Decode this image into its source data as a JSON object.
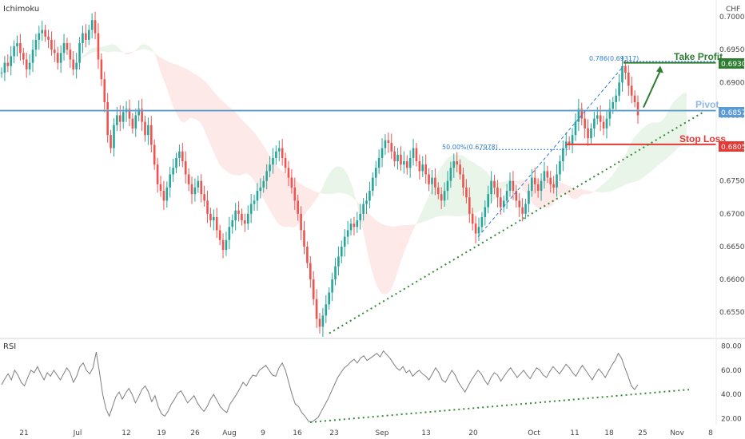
{
  "chart_data": {
    "type": "candlestick",
    "indicator_label": "Ichimoku",
    "currency_label": "CHF",
    "y_ticks": [
      "0.70000",
      "0.69500",
      "0.69000",
      "0.68500",
      "0.68000",
      "0.67500",
      "0.67000",
      "0.66500",
      "0.66000",
      "0.65500"
    ],
    "ylim": [
      0.6515,
      0.7022
    ],
    "x_ticks": [
      "21",
      "Jul",
      "12",
      "19",
      "26",
      "Aug",
      "9",
      "16",
      "23",
      "Sep",
      "13",
      "20",
      "Oct",
      "11",
      "18",
      "25",
      "Nov",
      "8"
    ],
    "levels": {
      "take_profit": {
        "label": "Take Profit",
        "value": "0.69300",
        "color": "#2e7d32"
      },
      "pivot": {
        "label": "Pivot",
        "value": "0.68570",
        "color": "#5b9bd5"
      },
      "stop_loss": {
        "label": "Stop Loss",
        "value": "0.68058",
        "color": "#e53935"
      }
    },
    "fib_labels": {
      "f786": "0.786(0.69317)",
      "f500": "50.00%(0.67978)"
    },
    "price_path": [
      0.6915,
      0.693,
      0.6925,
      0.694,
      0.6955,
      0.696,
      0.6945,
      0.6935,
      0.692,
      0.693,
      0.695,
      0.6965,
      0.6975,
      0.698,
      0.697,
      0.6965,
      0.695,
      0.6945,
      0.693,
      0.6945,
      0.696,
      0.695,
      0.6935,
      0.692,
      0.693,
      0.696,
      0.6975,
      0.6965,
      0.698,
      0.6995,
      0.6975,
      0.6935,
      0.6905,
      0.687,
      0.682,
      0.68,
      0.6835,
      0.685,
      0.684,
      0.6855,
      0.686,
      0.6845,
      0.683,
      0.685,
      0.686,
      0.684,
      0.682,
      0.6835,
      0.6805,
      0.6775,
      0.6745,
      0.6735,
      0.672,
      0.674,
      0.676,
      0.677,
      0.6785,
      0.6795,
      0.678,
      0.676,
      0.6745,
      0.673,
      0.674,
      0.675,
      0.673,
      0.672,
      0.67,
      0.669,
      0.6695,
      0.6675,
      0.666,
      0.6645,
      0.666,
      0.668,
      0.669,
      0.6705,
      0.67,
      0.669,
      0.6685,
      0.67,
      0.6715,
      0.672,
      0.6735,
      0.674,
      0.675,
      0.6765,
      0.6775,
      0.6785,
      0.6795,
      0.68,
      0.6785,
      0.677,
      0.6755,
      0.674,
      0.672,
      0.67,
      0.6675,
      0.665,
      0.6625,
      0.66,
      0.657,
      0.654,
      0.6528,
      0.6545,
      0.6562,
      0.658,
      0.66,
      0.662,
      0.6635,
      0.665,
      0.6665,
      0.6675,
      0.6685,
      0.668,
      0.669,
      0.67,
      0.6715,
      0.672,
      0.6735,
      0.6755,
      0.677,
      0.6785,
      0.68,
      0.6812,
      0.6808,
      0.6795,
      0.678,
      0.679,
      0.6775,
      0.678,
      0.677,
      0.6785,
      0.68,
      0.678,
      0.6765,
      0.6775,
      0.676,
      0.6745,
      0.6755,
      0.674,
      0.673,
      0.672,
      0.6735,
      0.675,
      0.677,
      0.678,
      0.6775,
      0.676,
      0.674,
      0.6725,
      0.67,
      0.6685,
      0.667,
      0.668,
      0.6695,
      0.671,
      0.673,
      0.675,
      0.674,
      0.6725,
      0.671,
      0.672,
      0.6735,
      0.675,
      0.6735,
      0.672,
      0.671,
      0.67,
      0.6715,
      0.6735,
      0.6755,
      0.6745,
      0.6735,
      0.675,
      0.6765,
      0.6755,
      0.6745,
      0.674,
      0.676,
      0.678,
      0.68,
      0.681,
      0.6805,
      0.682,
      0.684,
      0.686,
      0.6845,
      0.683,
      0.6815,
      0.683,
      0.6845,
      0.685,
      0.684,
      0.683,
      0.6845,
      0.686,
      0.687,
      0.688,
      0.69,
      0.6925,
      0.6915,
      0.6895,
      0.688,
      0.687,
      0.685
    ],
    "rsi": {
      "label": "RSI",
      "y_ticks": [
        "80.00",
        "60.00",
        "40.00",
        "20.00"
      ],
      "ylim": [
        15,
        85
      ],
      "values": [
        48,
        53,
        57,
        52,
        60,
        56,
        50,
        47,
        54,
        60,
        58,
        63,
        57,
        52,
        58,
        55,
        60,
        56,
        52,
        57,
        62,
        58,
        50,
        55,
        63,
        66,
        60,
        57,
        62,
        75,
        58,
        40,
        28,
        22,
        30,
        38,
        42,
        36,
        41,
        45,
        40,
        33,
        38,
        44,
        47,
        42,
        34,
        39,
        30,
        24,
        22,
        26,
        32,
        36,
        41,
        43,
        38,
        33,
        36,
        39,
        33,
        29,
        26,
        30,
        36,
        40,
        35,
        30,
        27,
        25,
        32,
        36,
        40,
        45,
        50,
        47,
        52,
        56,
        55,
        60,
        62,
        64,
        60,
        56,
        55,
        62,
        66,
        60,
        50,
        40,
        32,
        30,
        25,
        22,
        18,
        17,
        19,
        21,
        26,
        31,
        36,
        42,
        48,
        54,
        58,
        62,
        64,
        67,
        69,
        66,
        70,
        72,
        68,
        70,
        72,
        74,
        71,
        76,
        73,
        70,
        66,
        62,
        60,
        63,
        58,
        60,
        55,
        58,
        60,
        57,
        55,
        52,
        57,
        62,
        58,
        52,
        50,
        55,
        60,
        56,
        50,
        46,
        42,
        47,
        52,
        56,
        60,
        57,
        52,
        48,
        54,
        58,
        56,
        51,
        55,
        59,
        62,
        58,
        54,
        57,
        60,
        56,
        53,
        58,
        62,
        60,
        56,
        54,
        59,
        63,
        60,
        57,
        61,
        65,
        62,
        58,
        55,
        60,
        64,
        60,
        56,
        52,
        57,
        61,
        58,
        54,
        59,
        64,
        68,
        74,
        70,
        62,
        55,
        47,
        44,
        48
      ]
    }
  }
}
